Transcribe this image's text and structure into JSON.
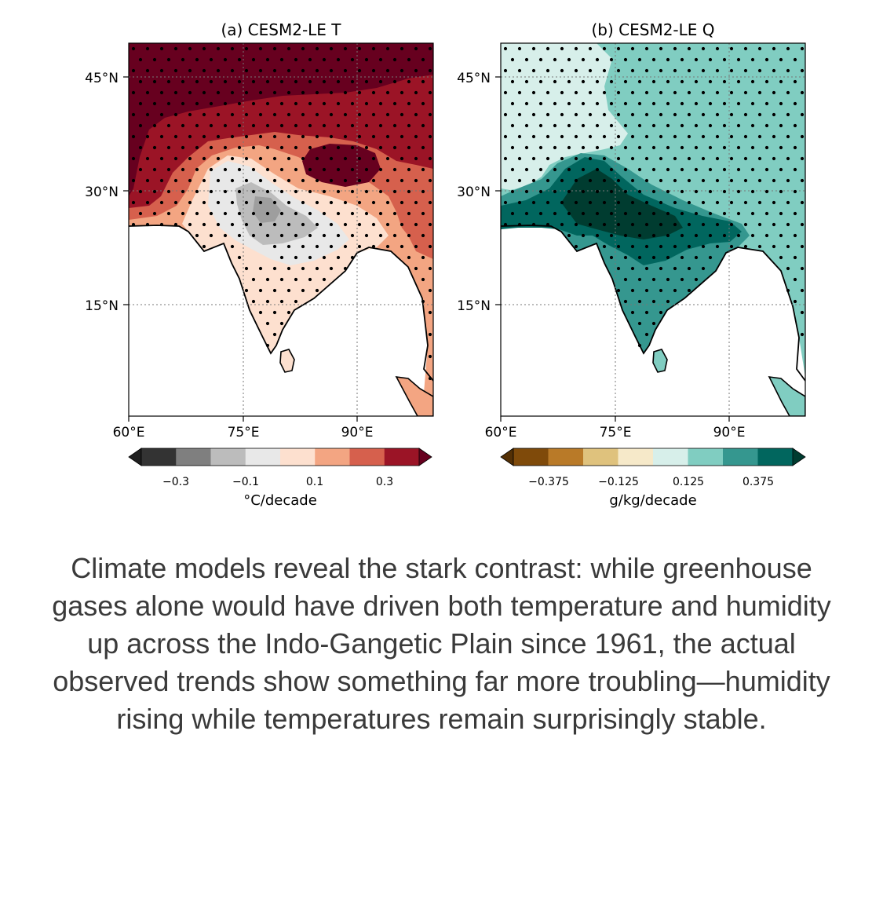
{
  "panels": [
    {
      "title": "(a) CESM2-LE T",
      "lat_labels": [
        "45°N",
        "30°N",
        "15°N"
      ],
      "lon_labels": [
        "60°E",
        "75°E",
        "90°E"
      ],
      "colorbar": {
        "colors": [
          "#333333",
          "#7f7f7f",
          "#bcbcbc",
          "#e8e8e8",
          "#fde0cf",
          "#f3a582",
          "#d6604d",
          "#9b1426"
        ],
        "end_colors": [
          "#1f1f1f",
          "#67001f"
        ],
        "tick_labels": [
          "−0.3",
          "−0.1",
          "0.1",
          "0.3"
        ],
        "label": "°C/decade"
      },
      "map_colors": {
        "band1": "#67001f",
        "band2": "#9b1426",
        "band3": "#d6604d",
        "band4": "#f3a582",
        "band5": "#fde0cf",
        "cool1": "#e8e8e8",
        "cool2": "#bcbcbc",
        "cool3": "#9e9e9e",
        "ocean": "#ffffff"
      }
    },
    {
      "title": "(b) CESM2-LE Q",
      "lat_labels": [
        "45°N",
        "30°N",
        "15°N"
      ],
      "lon_labels": [
        "60°E",
        "75°E",
        "90°E"
      ],
      "colorbar": {
        "colors": [
          "#7f4a0a",
          "#b97a28",
          "#dfc27d",
          "#f6e9c9",
          "#d7efea",
          "#80cdc1",
          "#35978f",
          "#01665e"
        ],
        "end_colors": [
          "#543005",
          "#003c30"
        ],
        "tick_labels": [
          "−0.375",
          "−0.125",
          "0.125",
          "0.375"
        ],
        "label": "g/kg/decade"
      },
      "map_colors": {
        "band1": "#d7efea",
        "band2": "#80cdc1",
        "band3": "#35978f",
        "band4": "#01665e",
        "band5": "#003c30",
        "ocean": "#ffffff"
      }
    }
  ],
  "caption": "Climate models reveal the stark contrast: while greenhouse gases alone would have driven both temperature and humidity up across the Indo-Gangetic Plain since 1961, the actual observed trends show something far more troubling—humidity rising while temperatures remain surprisingly stable."
}
